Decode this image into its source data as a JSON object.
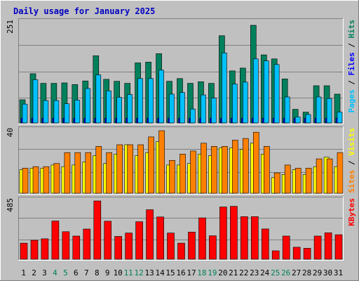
{
  "title": "Daily usage for January 2025",
  "colors": {
    "background": "#c0c0c0",
    "title": "#0000c0",
    "hits": "#00805c",
    "files": "#0000ff",
    "pages": "#00c0ff",
    "visits": "#ffff00",
    "sites": "#ff8000",
    "kbytes": "#ff0000",
    "weekend_label": "#00805c",
    "weekday_label": "#000000"
  },
  "chart_data": [
    {
      "type": "bar",
      "panel": "top",
      "ymax_label": "251",
      "ylim": [
        0,
        251
      ],
      "legend": {
        "parts": [
          {
            "text": "Pages",
            "color": "#00c0ff"
          },
          {
            "text": " / ",
            "color": "#000000"
          },
          {
            "text": "Files",
            "color": "#0000ff"
          },
          {
            "text": " / ",
            "color": "#000000"
          },
          {
            "text": "Hits",
            "color": "#00805c"
          }
        ]
      },
      "categories": [
        "1",
        "2",
        "3",
        "4",
        "5",
        "6",
        "7",
        "8",
        "9",
        "10",
        "11",
        "12",
        "13",
        "14",
        "15",
        "16",
        "17",
        "18",
        "19",
        "20",
        "21",
        "22",
        "23",
        "24",
        "25",
        "26",
        "27",
        "28",
        "29",
        "30",
        "31"
      ],
      "series": [
        {
          "name": "Hits",
          "color": "#00805c",
          "values": [
            58,
            123,
            99,
            99,
            100,
            96,
            105,
            168,
            109,
            104,
            99,
            150,
            152,
            173,
            104,
            111,
            99,
            103,
            99,
            218,
            130,
            137,
            244,
            170,
            160,
            110,
            34,
            27,
            93,
            93,
            72
          ]
        },
        {
          "name": "Files",
          "color": "#0000ff",
          "values": [
            12,
            12,
            12,
            12,
            12,
            12,
            12,
            12,
            12,
            12,
            12,
            12,
            12,
            12,
            12,
            12,
            12,
            12,
            12,
            12,
            12,
            12,
            12,
            12,
            12,
            12,
            12,
            12,
            12,
            12,
            12
          ]
        },
        {
          "name": "Pages",
          "color": "#00c0ff",
          "values": [
            47,
            108,
            56,
            56,
            48,
            57,
            86,
            120,
            80,
            64,
            71,
            111,
            111,
            132,
            72,
            76,
            35,
            70,
            62,
            175,
            97,
            102,
            160,
            155,
            146,
            65,
            15,
            21,
            65,
            61,
            27
          ]
        }
      ]
    },
    {
      "type": "bar",
      "panel": "middle",
      "ymax_label": "40",
      "ylim": [
        0,
        40
      ],
      "legend": {
        "parts": [
          {
            "text": "Sites",
            "color": "#ff8000"
          },
          {
            "text": " / ",
            "color": "#000000"
          },
          {
            "text": "Visits",
            "color": "#ffff00"
          }
        ]
      },
      "categories": [
        "1",
        "2",
        "3",
        "4",
        "5",
        "6",
        "7",
        "8",
        "9",
        "10",
        "11",
        "12",
        "13",
        "14",
        "15",
        "16",
        "17",
        "18",
        "19",
        "20",
        "21",
        "22",
        "23",
        "24",
        "25",
        "26",
        "27",
        "28",
        "29",
        "30",
        "31"
      ],
      "series": [
        {
          "name": "Visits",
          "color": "#ffff00",
          "values": [
            15,
            16,
            16,
            18,
            17,
            18,
            20,
            24,
            19,
            25,
            31,
            24,
            26,
            33,
            18,
            18,
            19,
            25,
            24,
            29,
            29,
            28,
            32,
            25,
            10,
            12,
            15,
            12,
            17,
            23,
            17
          ]
        },
        {
          "name": "Sites",
          "color": "#ff8000",
          "values": [
            16,
            17,
            17,
            19,
            26,
            26,
            26,
            30,
            26,
            31,
            31,
            31,
            36,
            40,
            21,
            25,
            27,
            32,
            30,
            30,
            34,
            35,
            39,
            30,
            13,
            18,
            16,
            16,
            22,
            22,
            26
          ]
        }
      ]
    },
    {
      "type": "bar",
      "panel": "bottom",
      "ymax_label": "485",
      "ylim": [
        0,
        485
      ],
      "legend": {
        "parts": [
          {
            "text": "KBytes",
            "color": "#ff0000"
          }
        ]
      },
      "categories": [
        "1",
        "2",
        "3",
        "4",
        "5",
        "6",
        "7",
        "8",
        "9",
        "10",
        "11",
        "12",
        "13",
        "14",
        "15",
        "16",
        "17",
        "18",
        "19",
        "20",
        "21",
        "22",
        "23",
        "24",
        "25",
        "26",
        "27",
        "28",
        "29",
        "30",
        "31"
      ],
      "series": [
        {
          "name": "KBytes",
          "color": "#ff0000",
          "values": [
            134,
            158,
            170,
            318,
            229,
            193,
            251,
            485,
            316,
            190,
            218,
            312,
            412,
            352,
            218,
            134,
            226,
            344,
            195,
            435,
            440,
            354,
            354,
            252,
            70,
            193,
            100,
            91,
            193,
            220,
            204
          ]
        }
      ]
    }
  ],
  "x_axis": {
    "labels": [
      {
        "text": "1",
        "weekend": false
      },
      {
        "text": "2",
        "weekend": false
      },
      {
        "text": "3",
        "weekend": false
      },
      {
        "text": "4",
        "weekend": true
      },
      {
        "text": "5",
        "weekend": true
      },
      {
        "text": "6",
        "weekend": false
      },
      {
        "text": "7",
        "weekend": false
      },
      {
        "text": "8",
        "weekend": false
      },
      {
        "text": "9",
        "weekend": false
      },
      {
        "text": "10",
        "weekend": false
      },
      {
        "text": "11",
        "weekend": true
      },
      {
        "text": "12",
        "weekend": true
      },
      {
        "text": "13",
        "weekend": false
      },
      {
        "text": "14",
        "weekend": false
      },
      {
        "text": "15",
        "weekend": false
      },
      {
        "text": "16",
        "weekend": false
      },
      {
        "text": "17",
        "weekend": false
      },
      {
        "text": "18",
        "weekend": true
      },
      {
        "text": "19",
        "weekend": true
      },
      {
        "text": "20",
        "weekend": false
      },
      {
        "text": "21",
        "weekend": false
      },
      {
        "text": "22",
        "weekend": false
      },
      {
        "text": "23",
        "weekend": false
      },
      {
        "text": "24",
        "weekend": false
      },
      {
        "text": "25",
        "weekend": true
      },
      {
        "text": "26",
        "weekend": true
      },
      {
        "text": "27",
        "weekend": false
      },
      {
        "text": "28",
        "weekend": false
      },
      {
        "text": "29",
        "weekend": false
      },
      {
        "text": "30",
        "weekend": false
      },
      {
        "text": "31",
        "weekend": false
      }
    ]
  }
}
